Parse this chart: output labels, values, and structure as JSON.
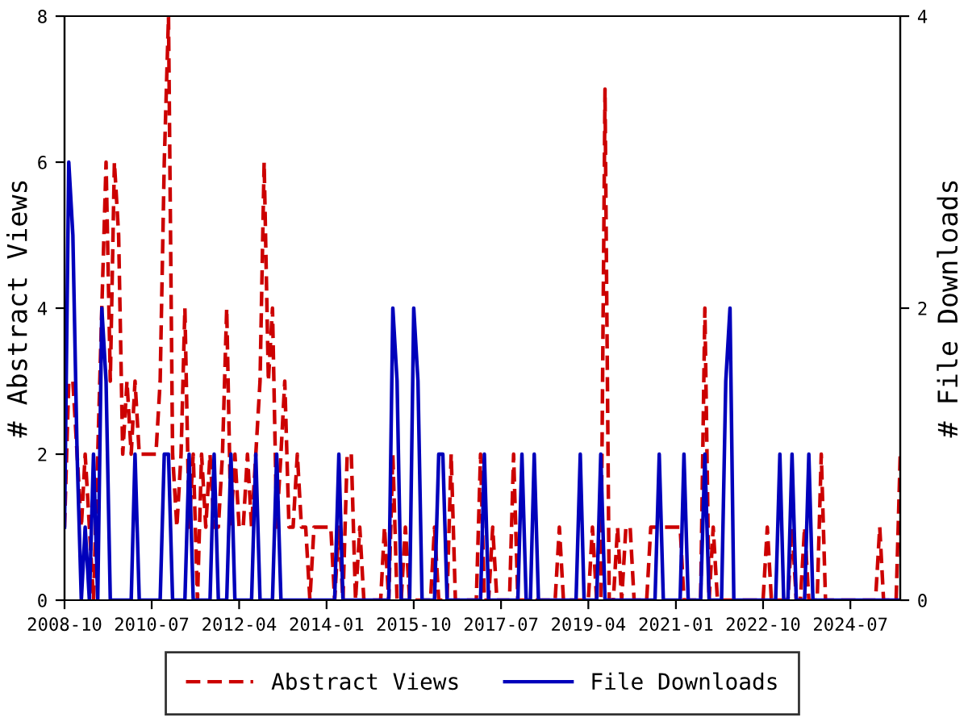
{
  "chart_data": {
    "type": "line",
    "ylabel": "# Abstract Views",
    "y2label": "# File Downloads",
    "x": [
      "2008-10",
      "2008-11",
      "2008-12",
      "2009-01",
      "2009-02",
      "2009-03",
      "2009-04",
      "2009-05",
      "2009-06",
      "2009-07",
      "2009-08",
      "2009-09",
      "2009-10",
      "2009-11",
      "2009-12",
      "2010-01",
      "2010-02",
      "2010-03",
      "2010-04",
      "2010-05",
      "2010-06",
      "2010-07",
      "2010-08",
      "2010-09",
      "2010-10",
      "2010-11",
      "2010-12",
      "2011-01",
      "2011-02",
      "2011-03",
      "2011-04",
      "2011-05",
      "2011-06",
      "2011-07",
      "2011-08",
      "2011-09",
      "2011-10",
      "2011-11",
      "2011-12",
      "2012-01",
      "2012-02",
      "2012-03",
      "2012-04",
      "2012-05",
      "2012-06",
      "2012-07",
      "2012-08",
      "2012-09",
      "2012-10",
      "2012-11",
      "2012-12",
      "2013-01",
      "2013-02",
      "2013-03",
      "2013-04",
      "2013-05",
      "2013-06",
      "2013-07",
      "2013-08",
      "2013-09",
      "2013-10",
      "2013-11",
      "2013-12",
      "2014-01",
      "2014-02",
      "2014-03",
      "2014-04",
      "2014-05",
      "2014-06",
      "2014-07",
      "2014-08",
      "2014-09",
      "2014-10",
      "2014-11",
      "2014-12",
      "2015-01",
      "2015-02",
      "2015-03",
      "2015-04",
      "2015-05",
      "2015-06",
      "2015-07",
      "2015-08",
      "2015-09",
      "2015-10",
      "2015-11",
      "2015-12",
      "2016-01",
      "2016-02",
      "2016-03",
      "2016-04",
      "2016-05",
      "2016-06",
      "2016-07",
      "2016-08",
      "2016-09",
      "2016-10",
      "2016-11",
      "2016-12",
      "2017-01",
      "2017-02",
      "2017-03",
      "2017-04",
      "2017-05",
      "2017-06",
      "2017-07",
      "2017-08",
      "2017-09",
      "2017-10",
      "2017-11",
      "2017-12",
      "2018-01",
      "2018-02",
      "2018-03",
      "2018-04",
      "2018-05",
      "2018-06",
      "2018-07",
      "2018-08",
      "2018-09",
      "2018-10",
      "2018-11",
      "2018-12",
      "2019-01",
      "2019-02",
      "2019-03",
      "2019-04",
      "2019-05",
      "2019-06",
      "2019-07",
      "2019-08",
      "2019-09",
      "2019-10",
      "2019-11",
      "2019-12",
      "2020-01",
      "2020-02",
      "2020-03",
      "2020-04",
      "2020-05",
      "2020-06",
      "2020-07",
      "2020-08",
      "2020-09",
      "2020-10",
      "2020-11",
      "2020-12",
      "2021-01",
      "2021-02",
      "2021-03",
      "2021-04",
      "2021-05",
      "2021-06",
      "2021-07",
      "2021-08",
      "2021-09",
      "2021-10",
      "2021-11",
      "2021-12",
      "2022-01",
      "2022-02",
      "2022-03",
      "2022-04",
      "2022-05",
      "2022-06",
      "2022-07",
      "2022-08",
      "2022-09",
      "2022-10",
      "2022-11",
      "2022-12",
      "2023-01",
      "2023-02",
      "2023-03",
      "2023-04",
      "2023-05",
      "2023-06",
      "2023-07",
      "2023-08",
      "2023-09",
      "2023-10",
      "2023-11",
      "2023-12",
      "2024-01",
      "2024-02",
      "2024-03",
      "2024-04",
      "2024-05",
      "2024-06",
      "2024-07",
      "2024-08",
      "2024-09",
      "2024-10",
      "2024-11",
      "2024-12",
      "2025-01",
      "2025-02",
      "2025-03",
      "2025-04",
      "2025-05",
      "2025-06",
      "2025-07"
    ],
    "series": [
      {
        "name": "Abstract Views",
        "color": "#cc0000",
        "line_style": "dashed",
        "values": [
          1,
          3,
          3,
          2,
          1,
          2,
          1,
          0,
          2,
          4,
          6,
          3,
          6,
          5,
          2,
          3,
          2,
          3,
          2,
          2,
          2,
          2,
          2,
          3,
          6,
          8,
          2,
          1,
          2,
          4,
          1,
          2,
          0,
          2,
          1,
          2,
          1,
          1,
          2,
          4,
          1,
          2,
          1,
          1,
          2,
          1,
          2,
          3,
          6,
          3,
          4,
          1,
          2,
          3,
          1,
          1,
          2,
          1,
          1,
          0,
          1,
          1,
          1,
          1,
          1,
          0,
          1,
          0,
          2,
          2,
          0,
          1,
          0,
          0,
          0,
          0,
          0,
          1,
          0,
          2,
          0,
          0,
          1,
          0,
          0,
          0,
          0,
          0,
          0,
          1,
          0,
          0,
          0,
          2,
          0,
          0,
          0,
          0,
          0,
          0,
          2,
          0,
          0,
          1,
          0,
          0,
          0,
          0,
          2,
          0,
          0,
          0,
          0,
          0,
          0,
          0,
          0,
          0,
          0,
          1,
          0,
          0,
          0,
          0,
          0,
          0,
          0,
          1,
          0,
          0,
          7,
          0,
          0,
          1,
          0,
          1,
          1,
          0,
          0,
          0,
          0,
          1,
          1,
          1,
          1,
          1,
          1,
          1,
          1,
          0,
          0,
          0,
          0,
          0,
          4,
          0,
          1,
          0,
          0,
          0,
          0,
          0,
          0,
          0,
          0,
          0,
          0,
          0,
          0,
          1,
          0,
          0,
          0,
          0,
          0,
          1,
          0,
          0,
          1,
          0,
          0,
          0,
          2,
          0,
          0,
          0,
          0,
          0,
          0,
          0,
          0,
          0,
          0,
          0,
          0,
          0,
          1,
          0,
          0,
          0,
          0,
          2
        ]
      },
      {
        "name": "File Downloads",
        "color": "#0000bb",
        "line_style": "solid",
        "axis": "y2",
        "values": [
          0.5,
          3,
          2.5,
          1,
          0,
          0.5,
          0,
          1,
          0,
          2,
          1.5,
          0,
          0,
          0,
          0,
          0,
          0,
          1,
          0,
          0,
          0,
          0,
          0,
          0,
          1,
          1,
          0,
          0,
          0,
          0,
          1,
          0,
          0,
          0,
          0,
          0,
          1,
          0,
          0,
          0,
          1,
          0,
          0,
          0,
          0,
          0,
          1,
          0,
          0,
          0,
          0,
          1,
          0,
          0,
          0,
          0,
          0,
          0,
          0,
          0,
          0,
          0,
          0,
          0,
          0,
          0,
          1,
          0,
          0,
          0,
          0,
          0,
          0,
          0,
          0,
          0,
          0,
          0,
          0,
          2,
          1.5,
          0,
          0,
          0,
          2,
          1.5,
          0,
          0,
          0,
          0,
          1,
          1,
          0,
          0,
          0,
          0,
          0,
          0,
          0,
          0,
          0,
          1,
          0,
          0,
          0,
          0,
          0,
          0,
          0,
          0,
          1,
          0,
          0,
          1,
          0,
          0,
          0,
          0,
          0,
          0,
          0,
          0,
          0,
          0,
          1,
          0,
          0,
          0,
          0,
          1,
          0,
          0,
          0,
          0,
          0,
          0,
          0,
          0,
          0,
          0,
          0,
          0,
          0,
          1,
          0,
          0,
          0,
          0,
          0,
          1,
          0,
          0,
          0,
          0,
          1,
          0,
          0,
          0,
          0,
          1.5,
          2,
          0,
          0,
          0,
          0,
          0,
          0,
          0,
          0,
          0,
          0,
          0,
          1,
          0,
          0,
          1,
          0,
          0,
          0,
          1,
          0,
          0,
          0,
          0,
          0,
          0,
          0,
          0,
          0,
          0,
          0,
          0,
          0,
          0,
          0,
          0,
          0,
          0,
          0,
          0,
          0,
          0
        ]
      }
    ],
    "xlim": [
      "2008-10",
      "2025-07"
    ],
    "xticks": [
      {
        "value": "2008-10",
        "label": "2008-10"
      },
      {
        "value": "2010-07",
        "label": "2010-07"
      },
      {
        "value": "2012-04",
        "label": "2012-04"
      },
      {
        "value": "2014-01",
        "label": "2014-01"
      },
      {
        "value": "2015-10",
        "label": "2015-10"
      },
      {
        "value": "2017-07",
        "label": "2017-07"
      },
      {
        "value": "2019-04",
        "label": "2019-04"
      },
      {
        "value": "2021-01",
        "label": "2021-01"
      },
      {
        "value": "2022-10",
        "label": "2022-10"
      },
      {
        "value": "2024-07",
        "label": "2024-07"
      }
    ],
    "ylim": [
      0,
      8
    ],
    "yticks": [
      0,
      2,
      4,
      6,
      8
    ],
    "y2lim": [
      0,
      4
    ],
    "y2ticks": [
      0,
      2,
      4
    ],
    "grid": false,
    "legend": "bottom",
    "marker": "none"
  }
}
